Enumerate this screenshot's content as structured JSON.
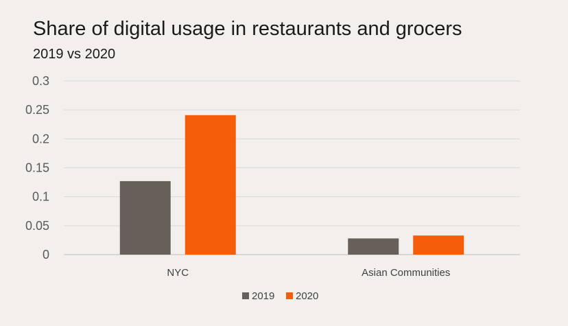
{
  "chart_data": {
    "type": "bar",
    "title": "Share of digital usage in restaurants and grocers",
    "subtitle": "2019 vs 2020",
    "categories": [
      "NYC",
      "Asian Communities"
    ],
    "series": [
      {
        "name": "2019",
        "values": [
          0.127,
          0.028
        ],
        "color": "#67605a"
      },
      {
        "name": "2020",
        "values": [
          0.241,
          0.033
        ],
        "color": "#f55d0a"
      }
    ],
    "yticks": [
      "0.3",
      "0.25",
      "0.2",
      "0.15",
      "0.1",
      "0.05",
      "0"
    ],
    "ylim": [
      0,
      0.3
    ],
    "grid": true,
    "legend_position": "bottom"
  }
}
